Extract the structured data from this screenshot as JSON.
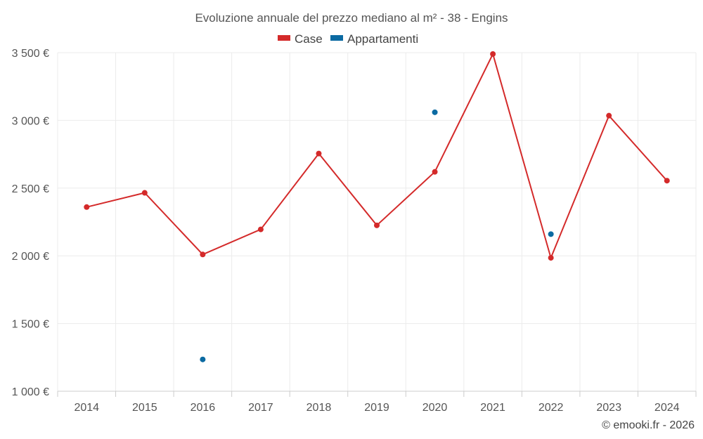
{
  "chart_data": {
    "type": "line",
    "title": "Evoluzione annuale del prezzo mediano al m² - 38 - Engins",
    "categories": [
      "2014",
      "2015",
      "2016",
      "2017",
      "2018",
      "2019",
      "2020",
      "2021",
      "2022",
      "2023",
      "2024"
    ],
    "series": [
      {
        "name": "Case",
        "color": "#d42a2a",
        "values": [
          2360,
          2465,
          2010,
          2195,
          2755,
          2225,
          2620,
          3490,
          1985,
          3035,
          2555
        ]
      },
      {
        "name": "Appartamenti",
        "color": "#0b6aa2",
        "values": [
          null,
          null,
          1235,
          null,
          null,
          null,
          3060,
          null,
          2160,
          null,
          null
        ]
      }
    ],
    "yticks": [
      "1 000 €",
      "1 500 €",
      "2 000 €",
      "2 500 €",
      "3 000 €",
      "3 500 €"
    ],
    "ylim": [
      1000,
      3500
    ],
    "grid": true,
    "legend_position": "top-center"
  },
  "credit": "© emooki.fr - 2026"
}
